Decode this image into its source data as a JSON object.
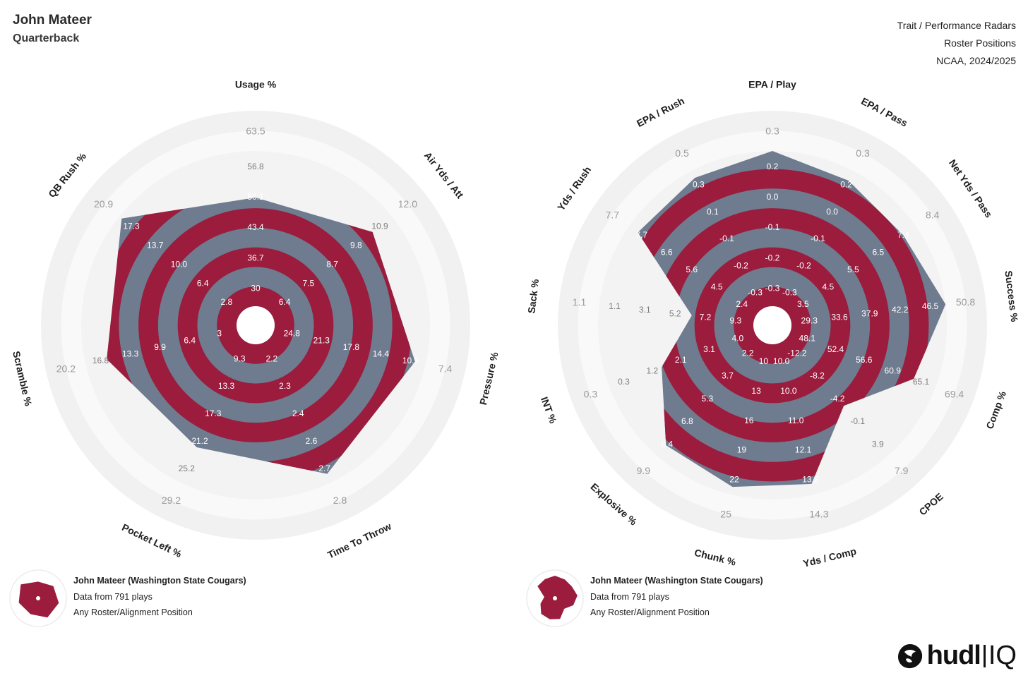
{
  "header": {
    "player_name": "John Mateer",
    "position": "Quarterback",
    "right_line1": "Trait / Performance Radars",
    "right_line2": "Roster Positions",
    "right_line3": "NCAA, 2024/2025"
  },
  "legend": {
    "line1": "John Mateer (Washington State Cougars)",
    "line2": "Data from 791 plays",
    "line3": "Any Roster/Alignment Position"
  },
  "logo": {
    "text": "hudl",
    "suffix": "IQ"
  },
  "colors": {
    "player_fill": "#9b1c3d",
    "range_fill": "#6f7b8e",
    "outer_ring": "#f1f1f1"
  },
  "chart_data": [
    {
      "type": "radar",
      "ring_levels": 9,
      "axes": [
        {
          "name": "Usage %",
          "max": "63.5",
          "ticks": [
            "30",
            "36.7",
            "43.4",
            "50.1",
            "56.8"
          ],
          "value": 0.7
        },
        {
          "name": "Air Yds / Att",
          "max": "12.0",
          "ticks": [
            "6.4",
            "7.5",
            "8.7",
            "9.8",
            "10.9"
          ],
          "value": 0.84
        },
        {
          "name": "Pressure %",
          "max": "7.4",
          "ticks": [
            "24.8",
            "21.3",
            "17.8",
            "14.4",
            "10.9"
          ],
          "value": 0.93
        },
        {
          "name": "Time To Throw",
          "max": "2.8",
          "ticks": [
            "2.2",
            "2.3",
            "2.4",
            "2.6",
            "2.7"
          ],
          "value": 0.94
        },
        {
          "name": "Pocket Left %",
          "max": "29.2",
          "ticks": [
            "9.3",
            "13.3",
            "17.3",
            "21.2",
            "25.2"
          ],
          "value": 0.75
        },
        {
          "name": "Scramble %",
          "max": "20.2",
          "ticks": [
            "3",
            "6.4",
            "9.9",
            "13.3",
            "16.8"
          ],
          "value": 0.86
        },
        {
          "name": "QB Rush %",
          "max": "20.9",
          "ticks": [
            "2.8",
            "6.4",
            "10.0",
            "13.7",
            "17.3"
          ],
          "value": 0.98
        }
      ]
    },
    {
      "type": "radar",
      "ring_levels": 9,
      "axes": [
        {
          "name": "EPA / Play",
          "max": "0.3",
          "ticks": [
            "-0.3",
            "-0.2",
            "-0.1",
            "0.0",
            "0.2"
          ],
          "value": 1.0
        },
        {
          "name": "EPA / Pass",
          "max": "0.3",
          "ticks": [
            "-0.3",
            "-0.2",
            "-0.1",
            "0.0",
            "0.2"
          ],
          "value": 0.93
        },
        {
          "name": "Net Yds / Pass",
          "max": "8.4",
          "ticks": [
            "3.5",
            "4.5",
            "5.5",
            "6.5",
            "7.4"
          ],
          "value": 0.9
        },
        {
          "name": "Success %",
          "max": "50.8",
          "ticks": [
            "29.3",
            "33.6",
            "37.9",
            "42.2",
            "46.5"
          ],
          "value": 1.0
        },
        {
          "name": "Comp %",
          "max": "69.4",
          "ticks": [
            "48.1",
            "52.4",
            "56.6",
            "60.9",
            "65.1"
          ],
          "value": 0.85
        },
        {
          "name": "CPOE",
          "max": "7.9",
          "ticks": [
            "-12.2",
            "-8.2",
            "-4.2",
            "-0.1",
            "3.9"
          ],
          "value": 0.57
        },
        {
          "name": "Yds / Comp",
          "max": "14.3",
          "ticks": [
            "10.0",
            "10.0",
            "11.0",
            "12.1",
            "13.2"
          ],
          "value": 0.93
        },
        {
          "name": "Chunk %",
          "max": "25",
          "ticks": [
            "10",
            "13",
            "16",
            "19",
            "22"
          ],
          "value": 0.95
        },
        {
          "name": "Explosive %",
          "max": "9.9",
          "ticks": [
            "2.2",
            "3.7",
            "5.3",
            "6.8",
            "8.4"
          ],
          "value": 0.91
        },
        {
          "name": "INT %",
          "max": "0.3",
          "ticks": [
            "4.0",
            "3.1",
            "2.1",
            "1.2",
            "0.3"
          ],
          "value": 0.64
        },
        {
          "name": "Sack %",
          "max": "1.1",
          "ticks": [
            "9.3",
            "7.2",
            "5.2",
            "3.1",
            "1.1"
          ],
          "value": 0.4
        },
        {
          "name": "Yds / Rush",
          "max": "7.7",
          "ticks": [
            "2.4",
            "4.5",
            "5.6",
            "6.6",
            "7.7"
          ],
          "value": 0.93
        },
        {
          "name": "EPA / Rush",
          "max": "0.5",
          "ticks": [
            "-0.3",
            "-0.2",
            "-0.1",
            "0.1",
            "0.3"
          ],
          "value": 0.95
        }
      ]
    }
  ]
}
